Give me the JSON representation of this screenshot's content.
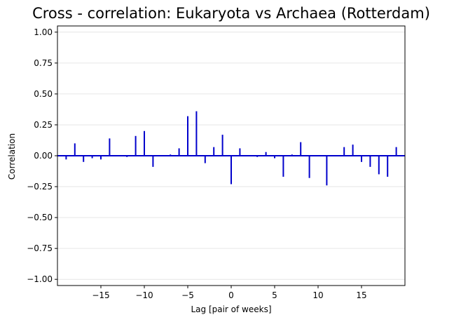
{
  "chart_data": {
    "type": "bar",
    "style": "stem",
    "title": "Cross - correlation: Eukaryota vs Archaea (Rotterdam)",
    "xlabel": "Lag [pair of weeks]",
    "ylabel": "Correlation",
    "xlim": [
      -20,
      20
    ],
    "ylim": [
      -1.05,
      1.05
    ],
    "xticks": [
      -15,
      -10,
      -5,
      0,
      5,
      10,
      15
    ],
    "xtick_labels": [
      "−15",
      "−10",
      "−5",
      "0",
      "5",
      "10",
      "15"
    ],
    "yticks": [
      1.0,
      0.75,
      0.5,
      0.25,
      0.0,
      -0.25,
      -0.5,
      -0.75,
      -1.0
    ],
    "ytick_labels": [
      "1.00",
      "0.75",
      "0.50",
      "0.25",
      "0.00",
      "−0.25",
      "−0.50",
      "−0.75",
      "−1.00"
    ],
    "grid": "horizontal",
    "line_color": "#0000cc",
    "baseline_color": "#0000cc",
    "lags": [
      -19,
      -18,
      -17,
      -16,
      -15,
      -14,
      -13,
      -12,
      -11,
      -10,
      -9,
      -8,
      -7,
      -6,
      -5,
      -4,
      -3,
      -2,
      -1,
      0,
      1,
      2,
      3,
      4,
      5,
      6,
      7,
      8,
      9,
      10,
      11,
      12,
      13,
      14,
      15,
      16,
      17,
      18,
      19
    ],
    "values": [
      -0.03,
      0.1,
      -0.05,
      -0.02,
      -0.03,
      0.14,
      0.0,
      -0.01,
      0.16,
      0.2,
      -0.09,
      0.0,
      0.01,
      0.06,
      0.32,
      0.36,
      -0.06,
      0.07,
      0.17,
      -0.23,
      0.06,
      0.0,
      -0.01,
      0.03,
      -0.02,
      -0.17,
      0.01,
      0.11,
      -0.18,
      0.0,
      -0.24,
      0.0,
      0.07,
      0.09,
      -0.05,
      -0.09,
      -0.15,
      -0.17,
      0.07
    ]
  }
}
